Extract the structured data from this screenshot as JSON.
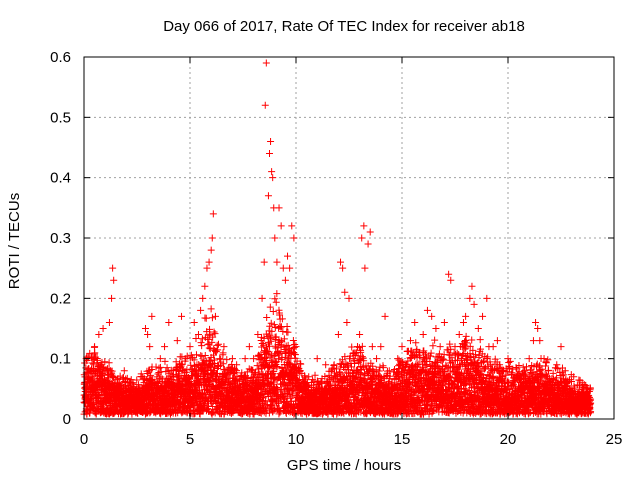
{
  "chart_data": {
    "type": "scatter",
    "title": "Day 066 of 2017, Rate Of TEC Index for receiver ab18",
    "xlabel": "GPS time / hours",
    "ylabel": "ROTI / TECUs",
    "xlim": [
      0,
      25
    ],
    "ylim": [
      0,
      0.6
    ],
    "xticks": [
      0,
      5,
      10,
      15,
      20,
      25
    ],
    "yticks": [
      0,
      0.1,
      0.2,
      0.3,
      0.4,
      0.5,
      0.6
    ],
    "xtick_labels": [
      "0",
      "5",
      "10",
      "15",
      "20",
      "25"
    ],
    "ytick_labels": [
      "0",
      "0.1",
      "0.2",
      "0.3",
      "0.4",
      "0.5",
      "0.6"
    ],
    "grid": true,
    "marker": "+",
    "marker_color": "#ff0000",
    "series": [
      {
        "points": [
          [
            0.05,
            0.04
          ],
          [
            0.1,
            0.1
          ],
          [
            0.15,
            0.06
          ],
          [
            0.2,
            0.03
          ],
          [
            0.3,
            0.08
          ],
          [
            0.4,
            0.05
          ],
          [
            0.5,
            0.12
          ],
          [
            0.6,
            0.04
          ],
          [
            0.7,
            0.14
          ],
          [
            0.8,
            0.09
          ],
          [
            0.9,
            0.15
          ],
          [
            1.0,
            0.05
          ],
          [
            1.1,
            0.08
          ],
          [
            1.2,
            0.16
          ],
          [
            1.3,
            0.2
          ],
          [
            1.35,
            0.25
          ],
          [
            1.4,
            0.23
          ],
          [
            1.5,
            0.06
          ],
          [
            1.7,
            0.04
          ],
          [
            1.9,
            0.08
          ],
          [
            2.1,
            0.03
          ],
          [
            2.3,
            0.06
          ],
          [
            2.5,
            0.04
          ],
          [
            2.7,
            0.07
          ],
          [
            2.9,
            0.15
          ],
          [
            3.0,
            0.14
          ],
          [
            3.1,
            0.12
          ],
          [
            3.2,
            0.17
          ],
          [
            3.4,
            0.05
          ],
          [
            3.6,
            0.1
          ],
          [
            3.8,
            0.12
          ],
          [
            4.0,
            0.16
          ],
          [
            4.2,
            0.08
          ],
          [
            4.4,
            0.13
          ],
          [
            4.6,
            0.17
          ],
          [
            4.8,
            0.1
          ],
          [
            5.0,
            0.12
          ],
          [
            5.2,
            0.16
          ],
          [
            5.4,
            0.14
          ],
          [
            5.5,
            0.18
          ],
          [
            5.6,
            0.2
          ],
          [
            5.7,
            0.22
          ],
          [
            5.8,
            0.25
          ],
          [
            5.9,
            0.26
          ],
          [
            6.0,
            0.28
          ],
          [
            6.05,
            0.3
          ],
          [
            6.1,
            0.34
          ],
          [
            6.2,
            0.17
          ],
          [
            6.4,
            0.1
          ],
          [
            6.6,
            0.12
          ],
          [
            6.8,
            0.08
          ],
          [
            7.0,
            0.1
          ],
          [
            7.2,
            0.09
          ],
          [
            7.4,
            0.07
          ],
          [
            7.6,
            0.1
          ],
          [
            7.8,
            0.12
          ],
          [
            8.0,
            0.1
          ],
          [
            8.2,
            0.14
          ],
          [
            8.4,
            0.2
          ],
          [
            8.5,
            0.26
          ],
          [
            8.55,
            0.52
          ],
          [
            8.6,
            0.59
          ],
          [
            8.7,
            0.37
          ],
          [
            8.75,
            0.44
          ],
          [
            8.8,
            0.46
          ],
          [
            8.85,
            0.41
          ],
          [
            8.9,
            0.4
          ],
          [
            8.95,
            0.35
          ],
          [
            9.0,
            0.3
          ],
          [
            9.1,
            0.26
          ],
          [
            9.2,
            0.35
          ],
          [
            9.3,
            0.32
          ],
          [
            9.4,
            0.25
          ],
          [
            9.5,
            0.23
          ],
          [
            9.6,
            0.27
          ],
          [
            9.7,
            0.25
          ],
          [
            9.8,
            0.32
          ],
          [
            9.9,
            0.3
          ],
          [
            10.0,
            0.12
          ],
          [
            10.2,
            0.08
          ],
          [
            10.4,
            0.05
          ],
          [
            10.6,
            0.07
          ],
          [
            10.8,
            0.04
          ],
          [
            11.0,
            0.1
          ],
          [
            11.2,
            0.06
          ],
          [
            11.4,
            0.09
          ],
          [
            11.6,
            0.05
          ],
          [
            11.8,
            0.09
          ],
          [
            12.0,
            0.14
          ],
          [
            12.1,
            0.26
          ],
          [
            12.2,
            0.25
          ],
          [
            12.3,
            0.21
          ],
          [
            12.4,
            0.16
          ],
          [
            12.5,
            0.2
          ],
          [
            12.7,
            0.1
          ],
          [
            12.9,
            0.12
          ],
          [
            13.0,
            0.14
          ],
          [
            13.1,
            0.3
          ],
          [
            13.2,
            0.32
          ],
          [
            13.25,
            0.25
          ],
          [
            13.4,
            0.29
          ],
          [
            13.5,
            0.31
          ],
          [
            13.6,
            0.12
          ],
          [
            13.8,
            0.1
          ],
          [
            14.0,
            0.12
          ],
          [
            14.2,
            0.17
          ],
          [
            14.4,
            0.08
          ],
          [
            14.6,
            0.05
          ],
          [
            14.8,
            0.1
          ],
          [
            15.0,
            0.12
          ],
          [
            15.2,
            0.09
          ],
          [
            15.4,
            0.13
          ],
          [
            15.6,
            0.16
          ],
          [
            15.8,
            0.11
          ],
          [
            16.0,
            0.14
          ],
          [
            16.2,
            0.18
          ],
          [
            16.4,
            0.17
          ],
          [
            16.6,
            0.15
          ],
          [
            16.8,
            0.12
          ],
          [
            17.0,
            0.16
          ],
          [
            17.2,
            0.24
          ],
          [
            17.3,
            0.23
          ],
          [
            17.5,
            0.12
          ],
          [
            17.7,
            0.14
          ],
          [
            17.9,
            0.16
          ],
          [
            18.0,
            0.17
          ],
          [
            18.2,
            0.2
          ],
          [
            18.3,
            0.22
          ],
          [
            18.4,
            0.19
          ],
          [
            18.6,
            0.15
          ],
          [
            18.8,
            0.17
          ],
          [
            19.0,
            0.2
          ],
          [
            19.1,
            0.12
          ],
          [
            19.3,
            0.12
          ],
          [
            19.5,
            0.13
          ],
          [
            19.7,
            0.08
          ],
          [
            20.0,
            0.1
          ],
          [
            20.2,
            0.06
          ],
          [
            20.4,
            0.07
          ],
          [
            20.6,
            0.05
          ],
          [
            20.8,
            0.08
          ],
          [
            21.0,
            0.1
          ],
          [
            21.2,
            0.13
          ],
          [
            21.3,
            0.16
          ],
          [
            21.4,
            0.15
          ],
          [
            21.5,
            0.13
          ],
          [
            21.7,
            0.1
          ],
          [
            21.9,
            0.08
          ],
          [
            22.1,
            0.06
          ],
          [
            22.3,
            0.09
          ],
          [
            22.5,
            0.12
          ],
          [
            22.7,
            0.08
          ],
          [
            22.9,
            0.05
          ],
          [
            23.1,
            0.07
          ],
          [
            23.3,
            0.04
          ],
          [
            23.5,
            0.06
          ],
          [
            23.7,
            0.05
          ]
        ]
      }
    ],
    "density_profile": [
      [
        0.0,
        0.075
      ],
      [
        0.5,
        0.08
      ],
      [
        1.0,
        0.07
      ],
      [
        1.5,
        0.05
      ],
      [
        2.0,
        0.045
      ],
      [
        2.5,
        0.04
      ],
      [
        3.0,
        0.06
      ],
      [
        3.5,
        0.055
      ],
      [
        4.0,
        0.065
      ],
      [
        4.5,
        0.07
      ],
      [
        5.0,
        0.075
      ],
      [
        5.5,
        0.1
      ],
      [
        6.0,
        0.12
      ],
      [
        6.5,
        0.08
      ],
      [
        7.0,
        0.06
      ],
      [
        7.5,
        0.055
      ],
      [
        8.0,
        0.06
      ],
      [
        8.5,
        0.12
      ],
      [
        9.0,
        0.14
      ],
      [
        9.5,
        0.13
      ],
      [
        10.0,
        0.08
      ],
      [
        10.5,
        0.045
      ],
      [
        11.0,
        0.045
      ],
      [
        11.5,
        0.05
      ],
      [
        12.0,
        0.06
      ],
      [
        12.5,
        0.08
      ],
      [
        13.0,
        0.08
      ],
      [
        13.5,
        0.07
      ],
      [
        14.0,
        0.06
      ],
      [
        14.5,
        0.05
      ],
      [
        15.0,
        0.08
      ],
      [
        15.5,
        0.085
      ],
      [
        16.0,
        0.09
      ],
      [
        16.5,
        0.09
      ],
      [
        17.0,
        0.08
      ],
      [
        17.5,
        0.08
      ],
      [
        18.0,
        0.1
      ],
      [
        18.5,
        0.09
      ],
      [
        19.0,
        0.07
      ],
      [
        19.5,
        0.06
      ],
      [
        20.0,
        0.06
      ],
      [
        20.5,
        0.055
      ],
      [
        21.0,
        0.06
      ],
      [
        21.5,
        0.07
      ],
      [
        22.0,
        0.06
      ],
      [
        22.5,
        0.055
      ],
      [
        23.0,
        0.045
      ],
      [
        23.5,
        0.04
      ],
      [
        23.9,
        0.035
      ]
    ]
  }
}
